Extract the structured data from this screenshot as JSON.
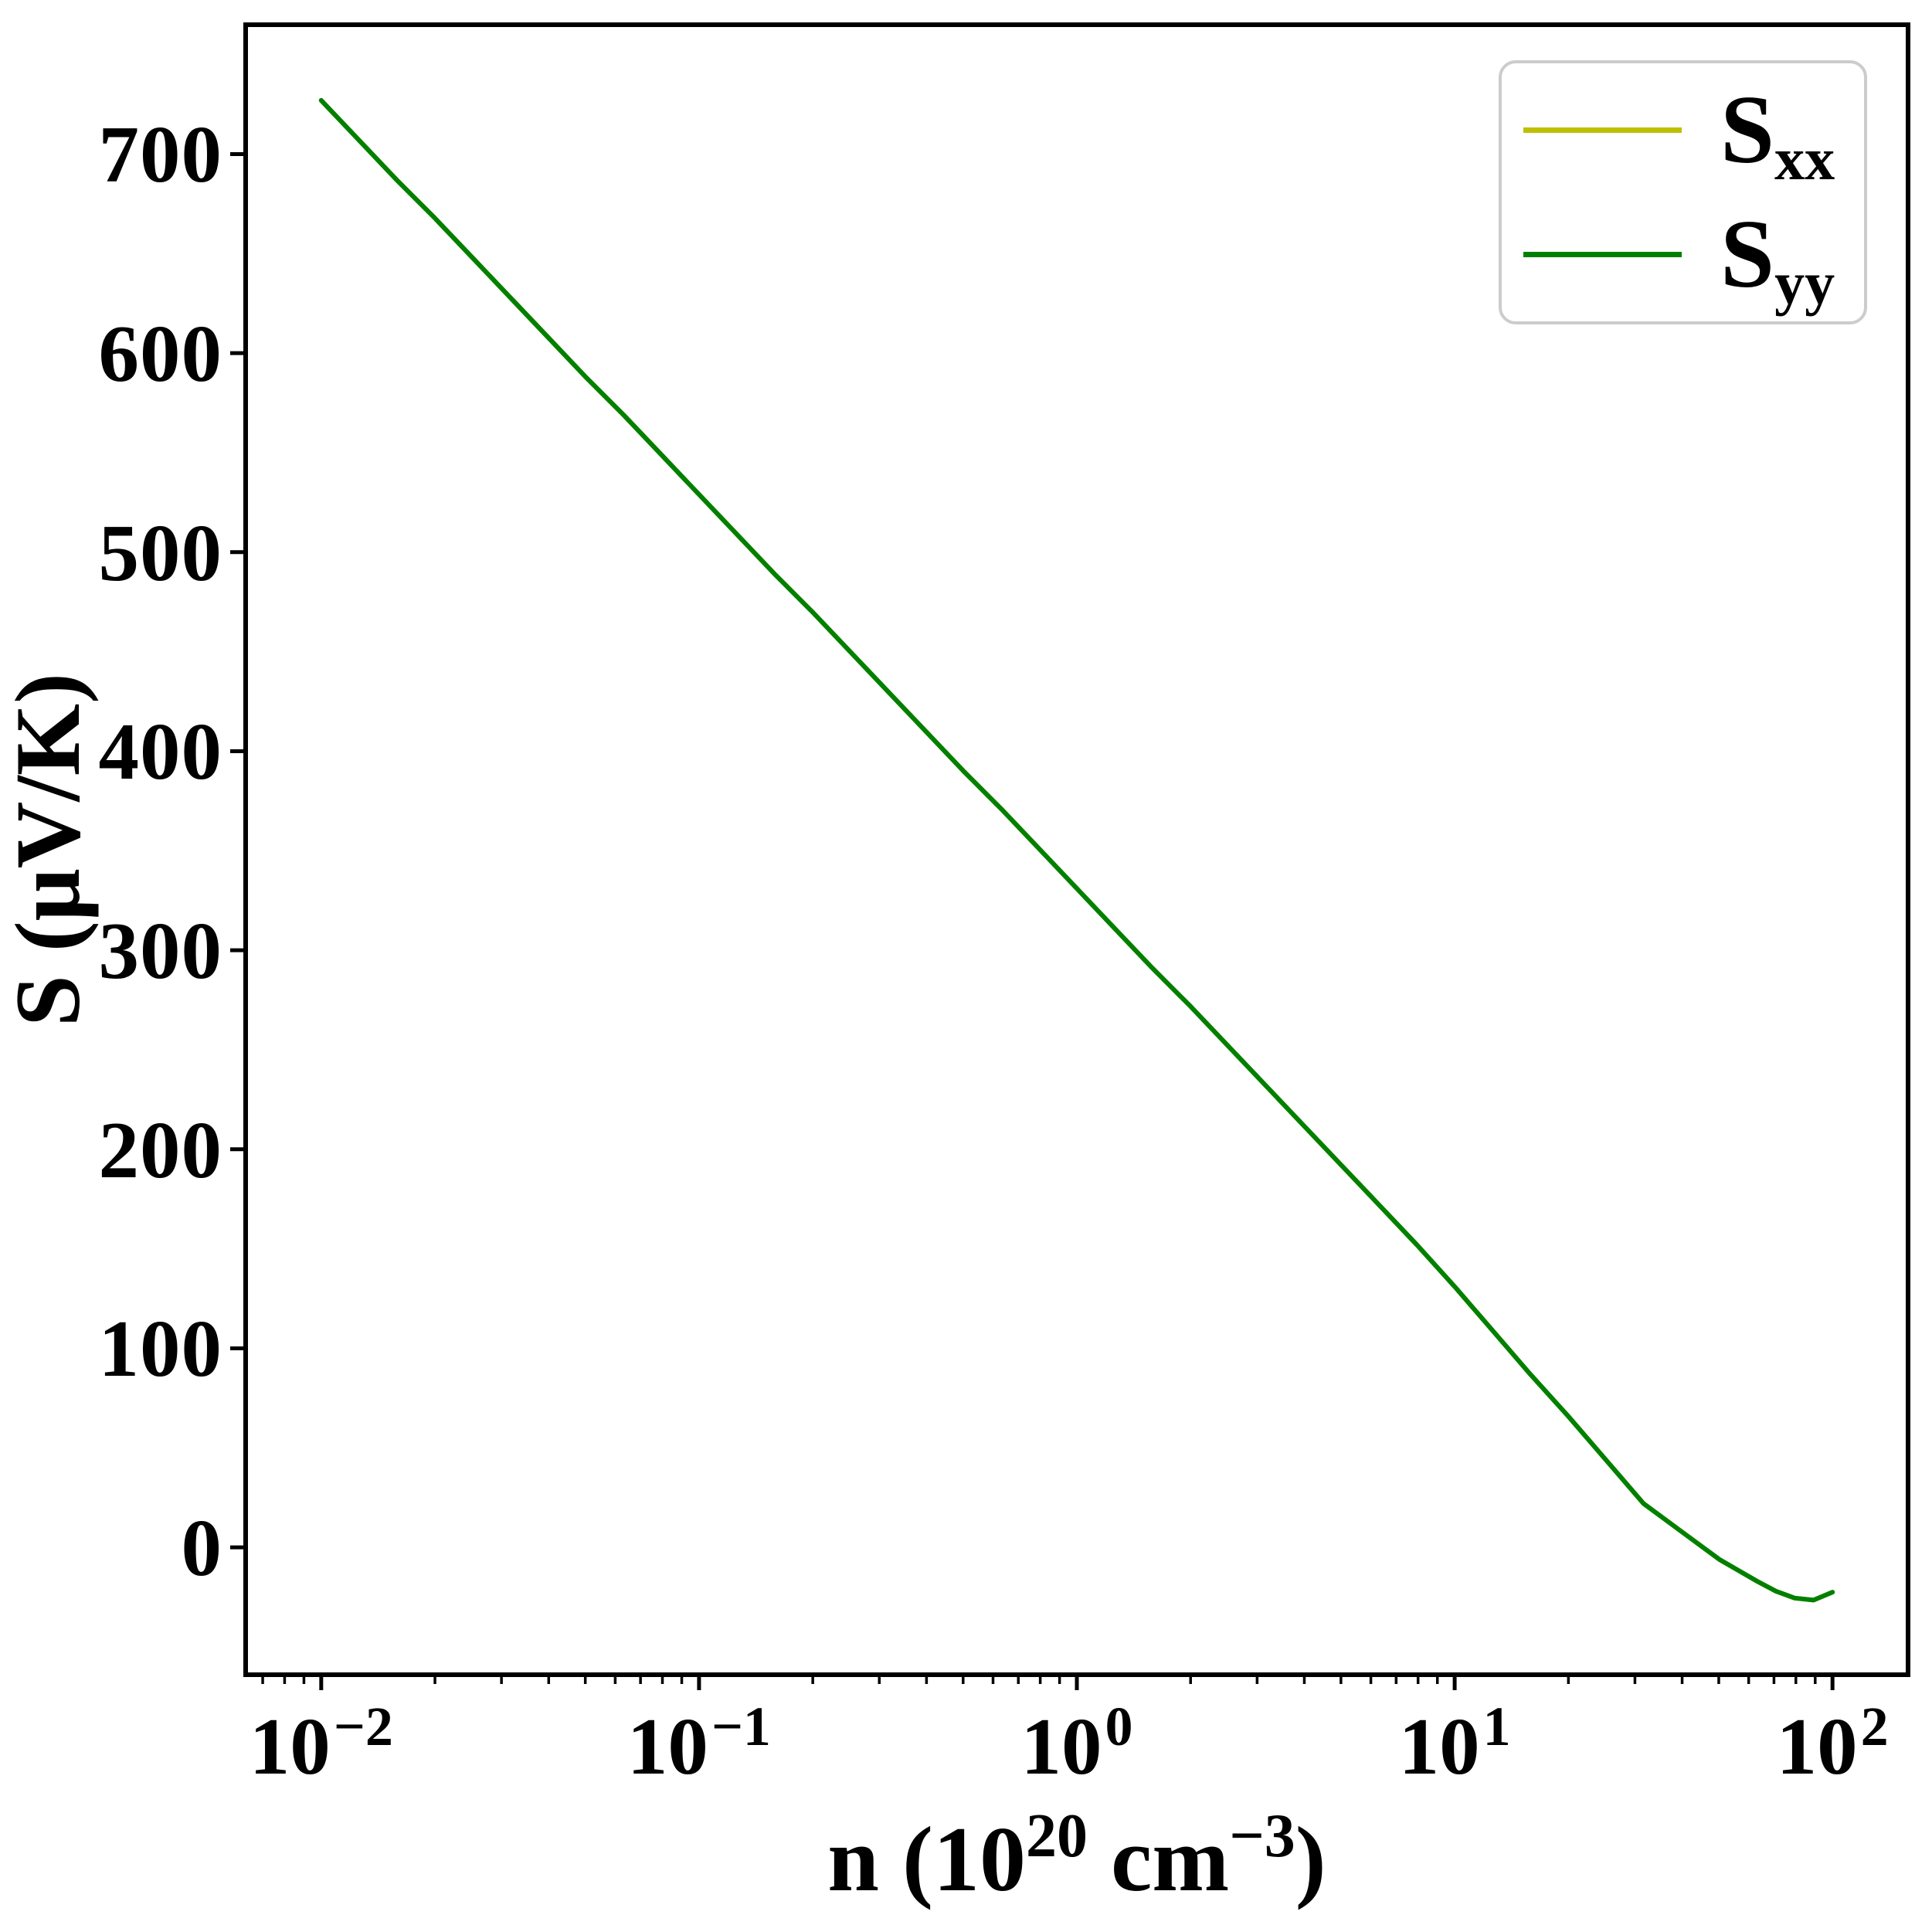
{
  "figure": {
    "background": "#ffffff"
  },
  "axes_style": {
    "spine_color": "#000000",
    "tick_color": "#000000",
    "spine_width": 6,
    "major_tick_len": 17,
    "minor_tick_len": 9,
    "major_tick_width": 5,
    "minor_tick_width": 3.5,
    "line_width": 6
  },
  "legend": {
    "position": "upper right",
    "items": [
      {
        "base": "S",
        "sub": "xx"
      },
      {
        "base": "S",
        "sub": "yy"
      }
    ]
  },
  "chart_data": {
    "type": "line",
    "title": "",
    "x_scale": "log",
    "grid": false,
    "legend_position": "upper right",
    "xlabel_parts": {
      "prefix": "n (10",
      "exp": "20",
      "mid": " cm",
      "exp2": "−3",
      "suffix": ")"
    },
    "xlabel_plain": "n (10^20 cm^-3)",
    "ylabel": "S (μV/K)",
    "xlim_log10": [
      -2.2,
      2.2
    ],
    "ylim": [
      -64,
      765
    ],
    "x_major_ticks": [
      {
        "log10": -2,
        "base": "10",
        "exp": "−2"
      },
      {
        "log10": -1,
        "base": "10",
        "exp": "−1"
      },
      {
        "log10": 0,
        "base": "10",
        "exp": "0"
      },
      {
        "log10": 1,
        "base": "10",
        "exp": "1"
      },
      {
        "log10": 2,
        "base": "10",
        "exp": "2"
      }
    ],
    "x_minor_tick_values": [
      0.007,
      0.008,
      0.009,
      0.02,
      0.03,
      0.04,
      0.05,
      0.06,
      0.07,
      0.08,
      0.09,
      0.2,
      0.3,
      0.4,
      0.5,
      0.6,
      0.7,
      0.8,
      0.9,
      2,
      3,
      4,
      5,
      6,
      7,
      8,
      9,
      20,
      30,
      40,
      50,
      60,
      70,
      80,
      90
    ],
    "y_ticks": [
      {
        "value": 0,
        "label": "0"
      },
      {
        "value": 100,
        "label": "100"
      },
      {
        "value": 200,
        "label": "200"
      },
      {
        "value": 300,
        "label": "300"
      },
      {
        "value": 400,
        "label": "400"
      },
      {
        "value": 500,
        "label": "500"
      },
      {
        "value": 600,
        "label": "600"
      },
      {
        "value": 700,
        "label": "700"
      }
    ],
    "x_log10": [
      -2.0,
      -1.9,
      -1.8,
      -1.7,
      -1.6,
      -1.5,
      -1.4,
      -1.3,
      -1.2,
      -1.1,
      -1.0,
      -0.9,
      -0.8,
      -0.7,
      -0.6,
      -0.5,
      -0.4,
      -0.3,
      -0.2,
      -0.1,
      0.0,
      0.1,
      0.2,
      0.3,
      0.4,
      0.5,
      0.6,
      0.7,
      0.8,
      0.9,
      1.0,
      1.1,
      1.2,
      1.3,
      1.4,
      1.5,
      1.6,
      1.7,
      1.8,
      1.85,
      1.9,
      1.95,
      2.0
    ],
    "series": [
      {
        "name": "Sxx",
        "label_base": "S",
        "label_sub": "xx",
        "color": "#bfbf00",
        "values": [
          727,
          707,
          687,
          668,
          648,
          628,
          608,
          588,
          569,
          549,
          529,
          509,
          489,
          470,
          450,
          430,
          410,
          390,
          371,
          351,
          331,
          311,
          291,
          272,
          252,
          232,
          212,
          192,
          172,
          152,
          131,
          109,
          87,
          66,
          44,
          22,
          8,
          -6,
          -17,
          -22,
          -25.5,
          -26.5,
          -22.5
        ]
      },
      {
        "name": "Syy",
        "label_base": "S",
        "label_sub": "yy",
        "color": "#008000",
        "values": [
          727,
          707,
          687,
          668,
          648,
          628,
          608,
          588,
          569,
          549,
          529,
          509,
          489,
          470,
          450,
          430,
          410,
          390,
          371,
          351,
          331,
          311,
          291,
          272,
          252,
          232,
          212,
          192,
          172,
          152,
          131,
          109,
          87,
          66,
          44,
          22,
          8,
          -6,
          -17,
          -22,
          -25.5,
          -26.5,
          -22.5
        ]
      }
    ],
    "units": {
      "x": "10^20 cm^-3",
      "y": "μV/K"
    }
  }
}
